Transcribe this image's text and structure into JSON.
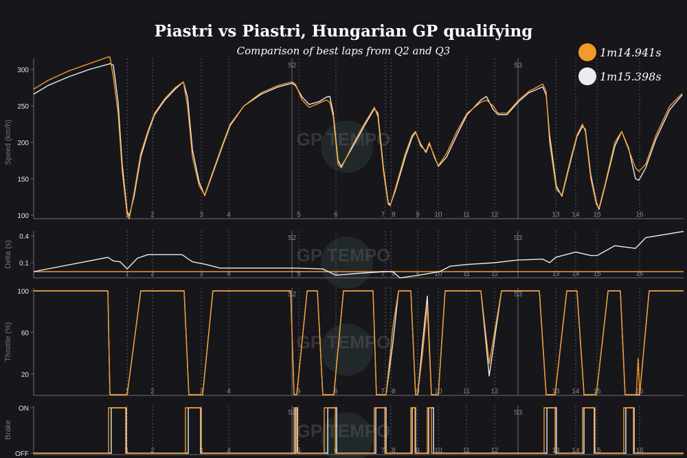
{
  "chart_data": {
    "type": "line",
    "title": "Piastri vs Piastri, Hungarian GP qualifying",
    "subtitle": "Comparison of best laps from Q2 and Q3",
    "legend": {
      "placement": "top-right",
      "entries": [
        {
          "label": "1m14.941s",
          "color": "#f39a2b"
        },
        {
          "label": "1m15.398s",
          "color": "#ececf0"
        }
      ]
    },
    "x_range_m": [
      0,
      4380
    ],
    "grid": false,
    "sectors": [
      {
        "label": "S2",
        "x": 1741
      },
      {
        "label": "S3",
        "x": 3264
      }
    ],
    "corners": [
      {
        "label": "1",
        "x": 630
      },
      {
        "label": "2",
        "x": 801
      },
      {
        "label": "3",
        "x": 1130
      },
      {
        "label": "4",
        "x": 1315
      },
      {
        "label": "5",
        "x": 1787
      },
      {
        "label": "6",
        "x": 2037
      },
      {
        "label": "7",
        "x": 2371
      },
      {
        "label": "8",
        "x": 2408
      },
      {
        "label": "9",
        "x": 2588
      },
      {
        "label": "10",
        "x": 2727
      },
      {
        "label": "11",
        "x": 2917
      },
      {
        "label": "12",
        "x": 3107
      },
      {
        "label": "13",
        "x": 3519
      },
      {
        "label": "14",
        "x": 3653
      },
      {
        "label": "15",
        "x": 3797
      },
      {
        "label": "16",
        "x": 4084
      }
    ],
    "panels": {
      "speed": {
        "ylabel": "Speed (km/h)",
        "ylim": [
          95,
          325
        ],
        "yticks": [
          100,
          150,
          200,
          250,
          300
        ],
        "x": [
          0,
          97,
          236,
          375,
          500,
          514,
          537,
          569,
          597,
          630,
          644,
          676,
          722,
          769,
          815,
          884,
          954,
          1009,
          1037,
          1070,
          1116,
          1153,
          1208,
          1278,
          1324,
          1417,
          1533,
          1648,
          1741,
          1764,
          1810,
          1857,
          1926,
          1972,
          1996,
          2019,
          2051,
          2074,
          2134,
          2227,
          2296,
          2320,
          2357,
          2389,
          2403,
          2435,
          2505,
          2551,
          2574,
          2607,
          2644,
          2667,
          2699,
          2727,
          2783,
          2852,
          2921,
          3014,
          3051,
          3097,
          3130,
          3190,
          3269,
          3338,
          3431,
          3454,
          3477,
          3523,
          3560,
          3616,
          3662,
          3699,
          3718,
          3755,
          3792,
          3810,
          3848,
          3917,
          3963,
          4010,
          4056,
          4079,
          4125,
          4195,
          4287,
          4371
        ],
        "series": [
          {
            "name": "1m14.941s",
            "color": "#f39a2b",
            "values": [
              273,
              285,
              298,
              308,
              317,
              317,
              290,
              240,
              160,
              100,
              95,
              130,
              185,
              215,
              240,
              260,
              275,
              283,
              250,
              180,
              140,
              128,
              160,
              200,
              225,
              250,
              268,
              278,
              283,
              280,
              258,
              248,
              254,
              258,
              255,
              235,
              170,
              165,
              190,
              225,
              248,
              235,
              160,
              115,
              113,
              135,
              185,
              210,
              215,
              195,
              188,
              200,
              180,
              168,
              185,
              215,
              240,
              255,
              258,
              250,
              240,
              240,
              258,
              270,
              280,
              270,
              200,
              135,
              128,
              175,
              210,
              225,
              215,
              150,
              115,
              110,
              140,
              200,
              215,
              190,
              165,
              160,
              170,
              210,
              250,
              267
            ]
          },
          {
            "name": "1m15.398s",
            "color": "#ececf0",
            "values": [
              266,
              278,
              290,
              300,
              307,
              308,
              306,
              255,
              170,
              105,
              99,
              125,
              180,
              212,
              238,
              258,
              273,
              283,
              262,
              190,
              145,
              127,
              158,
              198,
              223,
              250,
              266,
              276,
              281,
              278,
              262,
              252,
              256,
              262,
              263,
              240,
              175,
              167,
              188,
              222,
              246,
              240,
              165,
              118,
              114,
              132,
              180,
              207,
              214,
              198,
              186,
              198,
              182,
              167,
              180,
              210,
              238,
              258,
              263,
              245,
              238,
              238,
              256,
              268,
              276,
              265,
              210,
              140,
              126,
              172,
              208,
              222,
              218,
              155,
              118,
              108,
              138,
              195,
              215,
              192,
              150,
              148,
              165,
              205,
              245,
              265
            ]
          }
        ]
      },
      "delta": {
        "ylabel": "Delta (s)",
        "ylim": [
          -0.07,
          0.46
        ],
        "yticks": [
          0.1,
          0.4
        ],
        "reference": {
          "name": "1m14.941s",
          "value": 0,
          "color": "#f39a2b"
        },
        "x": [
          0,
          500,
          537,
          583,
          630,
          699,
          769,
          1000,
          1070,
          1162,
          1255,
          1764,
          1949,
          2037,
          2181,
          2366,
          2421,
          2468,
          2597,
          2736,
          2806,
          2921,
          3107,
          3264,
          3431,
          3477,
          3519,
          3653,
          3755,
          3797,
          3917,
          4056,
          4125,
          4380
        ],
        "series": [
          {
            "name": "1m15.398s",
            "color": "#ececf0",
            "values": [
              0,
              0.16,
              0.12,
              0.11,
              0.03,
              0.15,
              0.19,
              0.19,
              0.11,
              0.08,
              0.04,
              0.04,
              0.03,
              -0.04,
              -0.02,
              0.0,
              0.0,
              -0.07,
              -0.04,
              0.0,
              0.06,
              0.08,
              0.1,
              0.13,
              0.14,
              0.1,
              0.16,
              0.22,
              0.18,
              0.18,
              0.29,
              0.26,
              0.38,
              0.45
            ]
          }
        ]
      },
      "throttle": {
        "ylabel": "Throttle (%)",
        "ylim": [
          0,
          100
        ],
        "yticks": [
          20,
          60,
          100
        ],
        "x": [
          0,
          500,
          514,
          630,
          722,
          1014,
          1046,
          1139,
          1208,
          1732,
          1755,
          1773,
          1843,
          1912,
          1949,
          2023,
          2088,
          2287,
          2310,
          2375,
          2421,
          2459,
          2542,
          2574,
          2588,
          2621,
          2653,
          2681,
          2727,
          2773,
          3014,
          3070,
          3153,
          3408,
          3454,
          3514,
          3593,
          3662,
          3709,
          3792,
          3871,
          3954,
          3986,
          4033,
          4061,
          4074,
          4084,
          4148,
          4380
        ],
        "series": [
          {
            "name": "1m14.941s",
            "color": "#f39a2b",
            "values": [
              100,
              100,
              0,
              0,
              100,
              100,
              0,
              0,
              100,
              100,
              0,
              0,
              100,
              100,
              0,
              0,
              100,
              100,
              0,
              0,
              65,
              100,
              100,
              0,
              0,
              40,
              85,
              0,
              0,
              100,
              100,
              30,
              100,
              100,
              0,
              0,
              100,
              100,
              0,
              0,
              100,
              100,
              0,
              0,
              0,
              35,
              0,
              100,
              100
            ]
          },
          {
            "name": "1m15.398s",
            "color": "#ececf0",
            "values": [
              100,
              100,
              0,
              0,
              100,
              100,
              0,
              0,
              100,
              100,
              0,
              0,
              100,
              100,
              0,
              0,
              100,
              100,
              0,
              0,
              50,
              100,
              100,
              0,
              0,
              50,
              95,
              0,
              0,
              100,
              100,
              18,
              100,
              100,
              0,
              0,
              100,
              100,
              0,
              0,
              100,
              100,
              0,
              0,
              0,
              0,
              0,
              100,
              100
            ]
          }
        ]
      },
      "brake": {
        "ylabel": "Brake",
        "yticks": [
          "OFF",
          "ON"
        ],
        "series": [
          {
            "name": "1m14.941s",
            "color": "#f39a2b",
            "on_intervals": [
              [
                505,
                620
              ],
              [
                1023,
                1130
              ],
              [
                1755,
                1773
              ],
              [
                1958,
                2033
              ],
              [
                2296,
                2366
              ],
              [
                2542,
                2570
              ],
              [
                2653,
                2681
              ],
              [
                3440,
                3514
              ],
              [
                3699,
                3783
              ],
              [
                3977,
                4042
              ]
            ]
          },
          {
            "name": "1m15.398s",
            "color": "#ececf0",
            "on_intervals": [
              [
                523,
                625
              ],
              [
                1042,
                1125
              ],
              [
                1764,
                1778
              ],
              [
                1982,
                2042
              ],
              [
                2306,
                2375
              ],
              [
                2551,
                2574
              ],
              [
                2662,
                2695
              ],
              [
                3459,
                3523
              ],
              [
                3709,
                3778
              ],
              [
                3991,
                4047
              ]
            ]
          }
        ]
      }
    }
  },
  "watermark": "GP TEMPO"
}
